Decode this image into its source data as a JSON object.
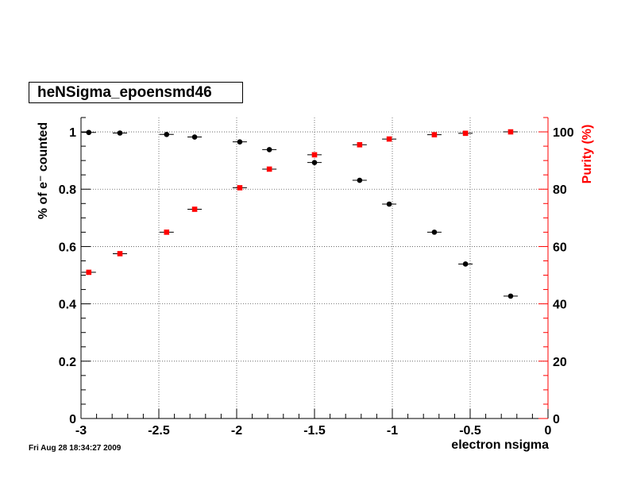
{
  "title": "heNSigma_epoensmd46",
  "timestamp": "Fri Aug 28 18:34:27 2009",
  "chart_data": {
    "type": "scatter",
    "xlabel": "electron nsigma",
    "ylabel_left": "% of e⁻ counted",
    "ylabel_right": "Purity (%)",
    "xlim": [
      -3,
      0
    ],
    "ylim_left": [
      0,
      1.05
    ],
    "ylim_right": [
      0,
      105
    ],
    "x_ticks": [
      "-3",
      "-2.5",
      "-2",
      "-1.5",
      "-1",
      "-0.5",
      "0"
    ],
    "y_ticks_left": [
      "0",
      "0.2",
      "0.4",
      "0.6",
      "0.8",
      "1"
    ],
    "y_ticks_right": [
      "0",
      "20",
      "40",
      "60",
      "80",
      "100"
    ],
    "grid": true,
    "series": [
      {
        "axis": "left",
        "color": "#000000",
        "marker": "circle",
        "x": [
          -2.95,
          -2.75,
          -2.45,
          -2.27,
          -1.98,
          -1.79,
          -1.5,
          -1.21,
          -1.02,
          -0.73,
          -0.53,
          -0.24
        ],
        "y": [
          0.998,
          0.996,
          0.991,
          0.982,
          0.965,
          0.938,
          0.893,
          0.831,
          0.748,
          0.65,
          0.539,
          0.427
        ]
      },
      {
        "axis": "right",
        "color": "#ff0000",
        "marker": "square",
        "x": [
          -2.95,
          -2.75,
          -2.45,
          -2.27,
          -1.98,
          -1.79,
          -1.5,
          -1.21,
          -1.02,
          -0.73,
          -0.53,
          -0.24
        ],
        "y": [
          51,
          57.5,
          65,
          73,
          80.5,
          87,
          92,
          95.5,
          97.5,
          99,
          99.5,
          100
        ]
      }
    ]
  }
}
